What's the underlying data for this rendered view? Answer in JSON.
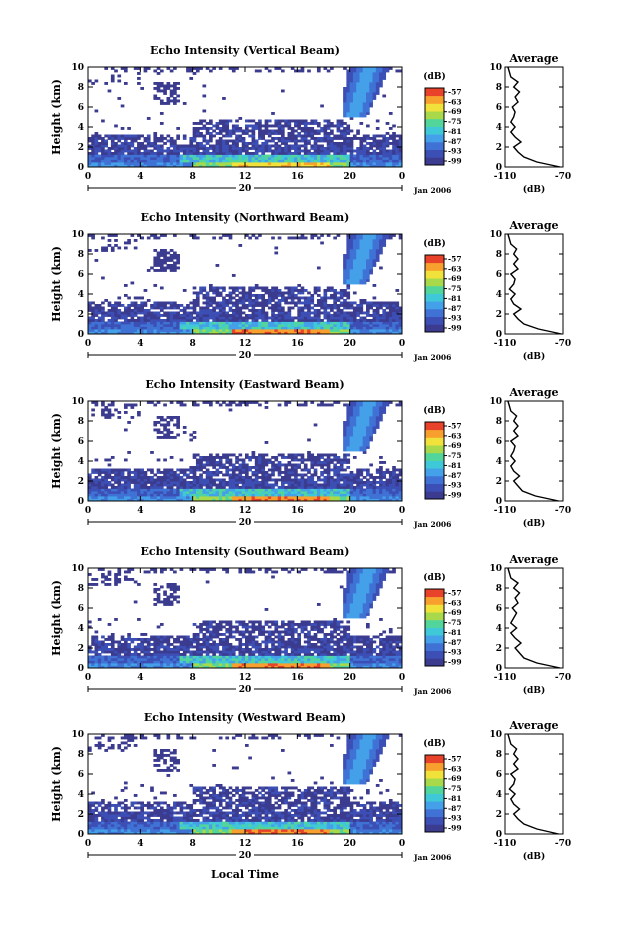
{
  "figure": {
    "x_label": "Local Time",
    "date_label": "Jan 2006",
    "day_label": "20",
    "y_label": "Height (km)",
    "colorbar_unit": "(dB)",
    "colorbar_ticks": [
      "-57",
      "-63",
      "-69",
      "-75",
      "-81",
      "-87",
      "-93",
      "-99"
    ],
    "avg_title": "Average",
    "avg_xlabel": "(dB)",
    "avg_xticks": [
      "-110",
      "-70"
    ],
    "avg_yticks": [
      "0",
      "2",
      "4",
      "6",
      "8",
      "10"
    ],
    "x_ticks": [
      "0",
      "4",
      "8",
      "12",
      "16",
      "20",
      "0"
    ],
    "y_ticks": [
      "0",
      "2",
      "4",
      "6",
      "8",
      "10"
    ],
    "colormap": [
      "#3b3b8f",
      "#3c4fb5",
      "#3f72d4",
      "#44a0e8",
      "#3fc8d8",
      "#52d59a",
      "#a8d94a",
      "#f0e23a",
      "#f7a02e",
      "#e8422a"
    ]
  },
  "chart_data": [
    {
      "type": "heatmap",
      "title": "Echo Intensity (Vertical Beam)",
      "xlabel": "",
      "ylabel": "Height (km)",
      "xlim": [
        0,
        24
      ],
      "ylim": [
        0,
        10
      ],
      "clim": [
        -99,
        -57
      ],
      "average_profile": {
        "xlim": [
          -110,
          -70
        ],
        "height_km": [
          0,
          0.5,
          1,
          1.5,
          2,
          2.5,
          3,
          3.5,
          4,
          4.5,
          5,
          5.5,
          6,
          6.5,
          7,
          7.5,
          8,
          8.5,
          9,
          9.5,
          10
        ],
        "db": [
          -72,
          -88,
          -97,
          -101,
          -104,
          -99,
          -103,
          -106,
          -103,
          -106,
          -104,
          -103,
          -105,
          -101,
          -103,
          -100,
          -104,
          -101,
          -106,
          -107,
          -108
        ]
      }
    },
    {
      "type": "heatmap",
      "title": "Echo Intensity (Northward Beam)",
      "xlabel": "",
      "ylabel": "Height (km)",
      "xlim": [
        0,
        24
      ],
      "ylim": [
        0,
        10
      ],
      "clim": [
        -99,
        -57
      ],
      "average_profile": {
        "xlim": [
          -110,
          -70
        ],
        "height_km": [
          0,
          0.5,
          1,
          1.5,
          2,
          2.5,
          3,
          3.5,
          4,
          4.5,
          5,
          5.5,
          6,
          6.5,
          7,
          7.5,
          8,
          8.5,
          9,
          9.5,
          10
        ],
        "db": [
          -71,
          -87,
          -97,
          -101,
          -104,
          -99,
          -104,
          -106,
          -103,
          -107,
          -104,
          -103,
          -106,
          -101,
          -104,
          -101,
          -104,
          -102,
          -106,
          -107,
          -108
        ]
      }
    },
    {
      "type": "heatmap",
      "title": "Echo Intensity (Eastward Beam)",
      "xlabel": "",
      "ylabel": "Height (km)",
      "xlim": [
        0,
        24
      ],
      "ylim": [
        0,
        10
      ],
      "clim": [
        -99,
        -57
      ],
      "average_profile": {
        "xlim": [
          -110,
          -70
        ],
        "height_km": [
          0,
          0.5,
          1,
          1.5,
          2,
          2.5,
          3,
          3.5,
          4,
          4.5,
          5,
          5.5,
          6,
          6.5,
          7,
          7.5,
          8,
          8.5,
          9,
          9.5,
          10
        ],
        "db": [
          -73,
          -89,
          -98,
          -101,
          -104,
          -100,
          -104,
          -106,
          -103,
          -106,
          -104,
          -103,
          -106,
          -101,
          -104,
          -101,
          -104,
          -102,
          -106,
          -107,
          -108
        ]
      }
    },
    {
      "type": "heatmap",
      "title": "Echo Intensity (Southward Beam)",
      "xlabel": "",
      "ylabel": "Height (km)",
      "xlim": [
        0,
        24
      ],
      "ylim": [
        0,
        10
      ],
      "clim": [
        -99,
        -57
      ],
      "average_profile": {
        "xlim": [
          -110,
          -70
        ],
        "height_km": [
          0,
          0.5,
          1,
          1.5,
          2,
          2.5,
          3,
          3.5,
          4,
          4.5,
          5,
          5.5,
          6,
          6.5,
          7,
          7.5,
          8,
          8.5,
          9,
          9.5,
          10
        ],
        "db": [
          -72,
          -88,
          -97,
          -100,
          -103,
          -99,
          -103,
          -106,
          -102,
          -106,
          -104,
          -102,
          -105,
          -101,
          -103,
          -100,
          -104,
          -101,
          -106,
          -107,
          -108
        ]
      }
    },
    {
      "type": "heatmap",
      "title": "Echo Intensity (Westward Beam)",
      "xlabel": "Local Time",
      "ylabel": "Height (km)",
      "xlim": [
        0,
        24
      ],
      "ylim": [
        0,
        10
      ],
      "clim": [
        -99,
        -57
      ],
      "average_profile": {
        "xlim": [
          -110,
          -70
        ],
        "height_km": [
          0,
          0.5,
          1,
          1.5,
          2,
          2.5,
          3,
          3.5,
          4,
          4.5,
          5,
          5.5,
          6,
          6.5,
          7,
          7.5,
          8,
          8.5,
          9,
          9.5,
          10
        ],
        "db": [
          -73,
          -88,
          -97,
          -101,
          -104,
          -100,
          -104,
          -106,
          -103,
          -107,
          -104,
          -103,
          -106,
          -101,
          -104,
          -101,
          -104,
          -102,
          -106,
          -107,
          -108
        ]
      }
    }
  ]
}
